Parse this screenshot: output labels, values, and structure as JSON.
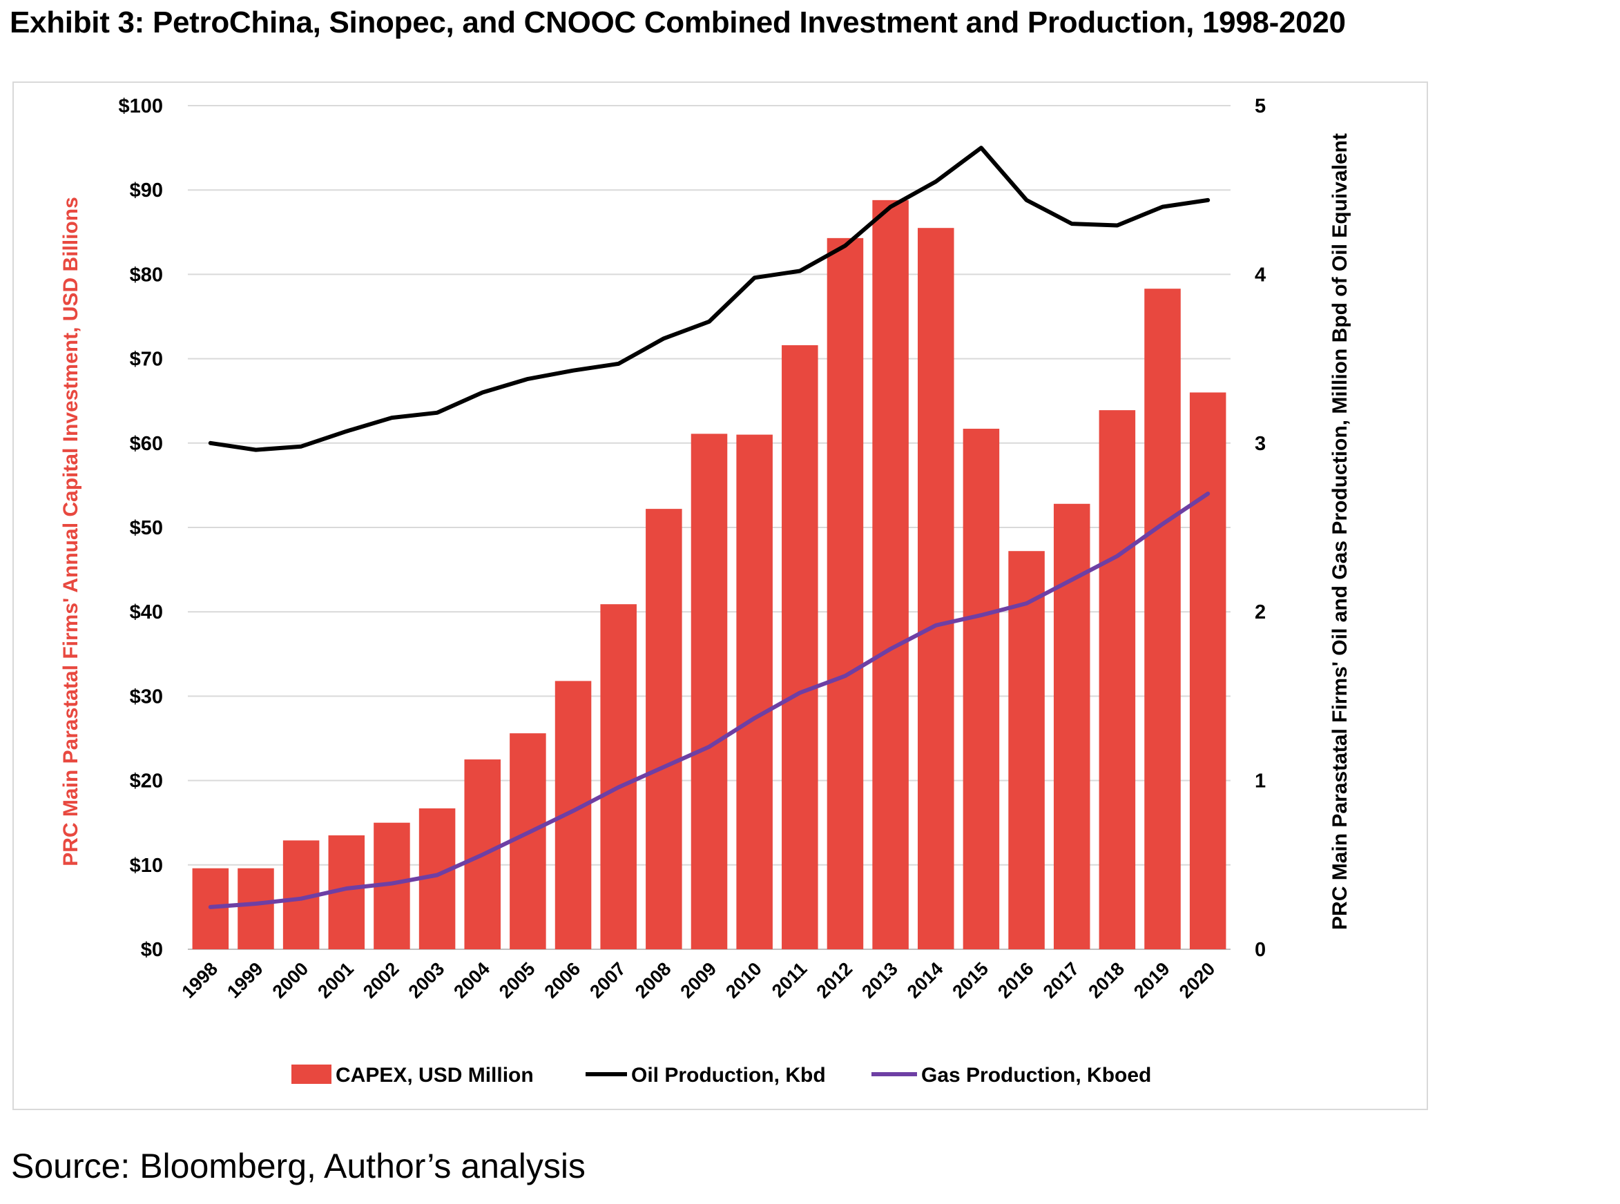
{
  "title": "Exhibit 3: PetroChina, Sinopec, and CNOOC Combined Investment and Production, 1998-2020",
  "source": "Source: Bloomberg, Author’s analysis",
  "chart_data": {
    "type": "bar",
    "categories": [
      "1998",
      "1999",
      "2000",
      "2001",
      "2002",
      "2003",
      "2004",
      "2005",
      "2006",
      "2007",
      "2008",
      "2009",
      "2010",
      "2011",
      "2012",
      "2013",
      "2014",
      "2015",
      "2016",
      "2017",
      "2018",
      "2019",
      "2020"
    ],
    "ylabel": "PRC Main Parastatal Firms' Annual Capital Investment, USD Billions",
    "y2label": "PRC Main Parastatal Firms' Oil and Gas Production, Million Bpd of Oil Equivalent",
    "ylim": [
      0,
      100
    ],
    "y2lim": [
      0,
      5
    ],
    "yticks": [
      "$0",
      "$10",
      "$20",
      "$30",
      "$40",
      "$50",
      "$60",
      "$70",
      "$80",
      "$90",
      "$100"
    ],
    "y2ticks": [
      "0",
      "1",
      "2",
      "3",
      "4",
      "5"
    ],
    "grid": true,
    "legend_position": "bottom",
    "series": [
      {
        "name": "CAPEX, USD Million",
        "type": "bar",
        "axis": "left",
        "color": "#e8483f",
        "values": [
          9.6,
          9.6,
          12.9,
          13.5,
          15.0,
          16.7,
          22.5,
          25.6,
          31.8,
          40.9,
          52.2,
          61.1,
          61.0,
          71.6,
          84.3,
          88.8,
          85.5,
          61.7,
          47.2,
          52.8,
          63.9,
          78.3,
          66.0
        ]
      },
      {
        "name": "Oil Production, Kbd",
        "type": "line",
        "axis": "right",
        "color": "#000000",
        "values": [
          3.0,
          2.96,
          2.98,
          3.07,
          3.15,
          3.18,
          3.3,
          3.38,
          3.43,
          3.47,
          3.62,
          3.72,
          3.98,
          4.02,
          4.17,
          4.4,
          4.55,
          4.75,
          4.44,
          4.3,
          4.29,
          4.4,
          4.44
        ]
      },
      {
        "name": "Gas Production, Kboed",
        "type": "line",
        "axis": "right",
        "color": "#6e3fa4",
        "values": [
          0.25,
          0.27,
          0.3,
          0.36,
          0.39,
          0.44,
          0.56,
          0.69,
          0.82,
          0.96,
          1.08,
          1.2,
          1.37,
          1.52,
          1.62,
          1.78,
          1.92,
          1.98,
          2.05,
          2.19,
          2.33,
          2.52,
          2.7
        ]
      }
    ]
  }
}
